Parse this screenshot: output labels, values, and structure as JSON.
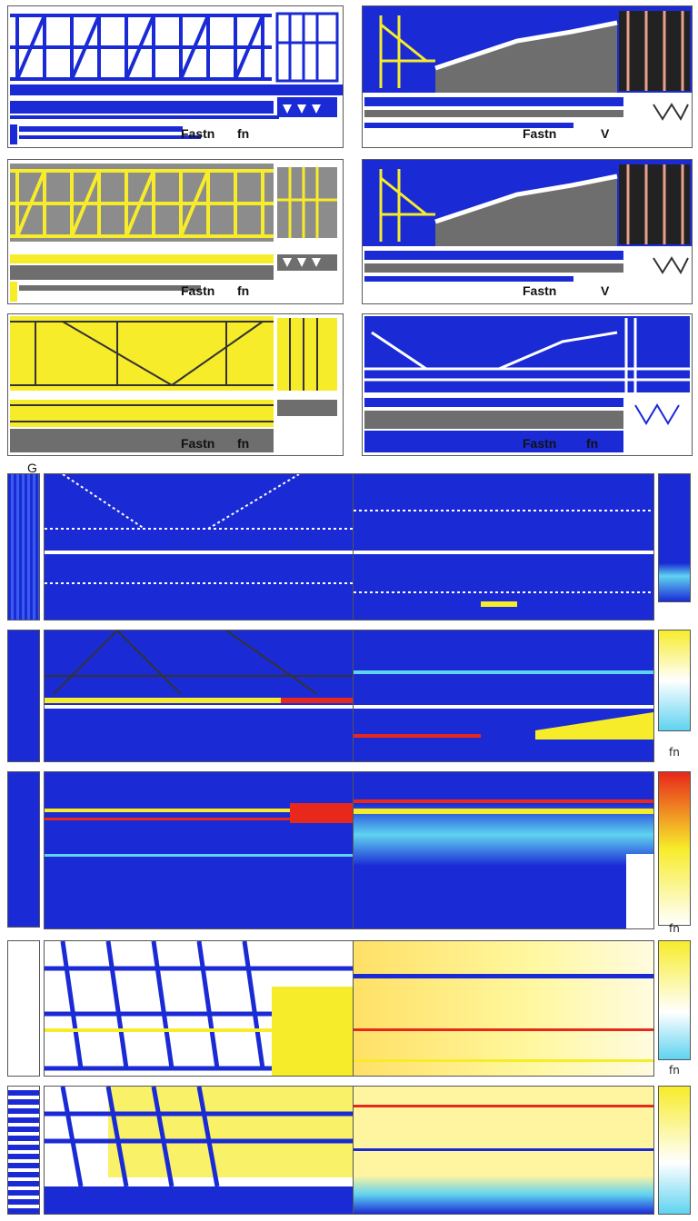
{
  "labels": {
    "top_panel_text": "Fastn",
    "top_panel_mark": "fn",
    "right_mark": "V",
    "tick_mark": "fn",
    "section_letter": "G"
  },
  "colors": {
    "blue": "#1a2bd6",
    "yellow": "#f7ec2a",
    "gray": "#6e6e6e",
    "red": "#e8281a",
    "cyan": "#5fd3f0",
    "white": "#ffffff"
  }
}
